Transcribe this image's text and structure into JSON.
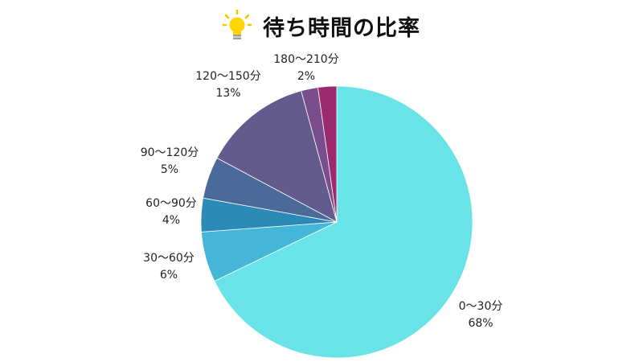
{
  "chart_data": {
    "type": "pie",
    "title": "待ち時間の比率",
    "title_icon": "lightbulb-icon",
    "categories": [
      "0〜30分",
      "30〜60分",
      "60〜90分",
      "90〜120分",
      "120〜150分",
      "180〜210分"
    ],
    "values": [
      68,
      6,
      4,
      5,
      13,
      2
    ],
    "value_labels": [
      "68%",
      "6%",
      "4%",
      "5%",
      "13%",
      "2%"
    ],
    "extra_slice_color": "#9b2a6e",
    "colors": [
      "#6ae3e8",
      "#44b6d8",
      "#2b8ab8",
      "#4a6a9a",
      "#635a8e",
      "#7a4e8c"
    ]
  }
}
